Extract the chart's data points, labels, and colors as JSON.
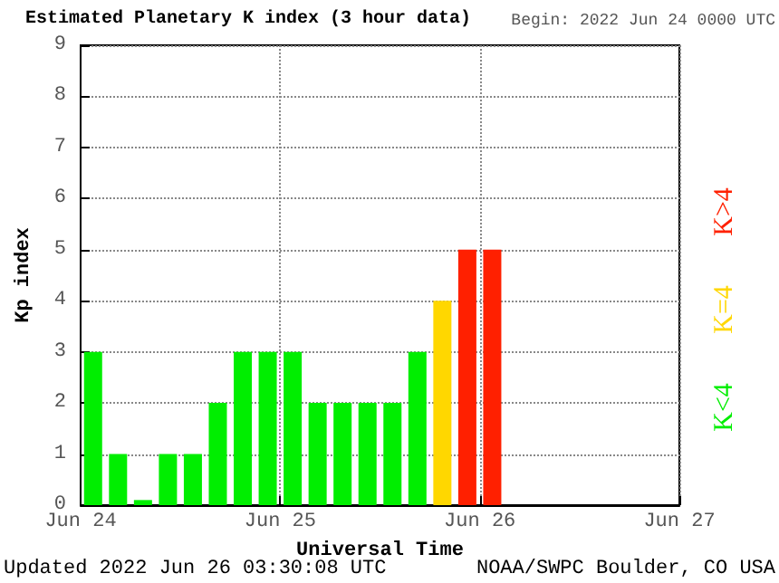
{
  "chart_data": {
    "type": "bar",
    "title": "Estimated Planetary K index (3 hour data)",
    "subtitle": "Begin: 2022 Jun 24 0000 UTC",
    "xlabel": "Universal Time",
    "ylabel": "Kp index",
    "x": [
      "2022-06-24T01:30",
      "2022-06-24T04:30",
      "2022-06-24T07:30",
      "2022-06-24T10:30",
      "2022-06-24T13:30",
      "2022-06-24T16:30",
      "2022-06-24T19:30",
      "2022-06-24T22:30",
      "2022-06-25T01:30",
      "2022-06-25T04:30",
      "2022-06-25T07:30",
      "2022-06-25T10:30",
      "2022-06-25T13:30",
      "2022-06-25T16:30",
      "2022-06-25T19:30",
      "2022-06-25T22:30",
      "2022-06-26T01:30"
    ],
    "values": [
      3,
      1,
      0.1,
      1,
      1,
      2,
      3,
      3,
      3,
      2,
      2,
      2,
      2,
      3,
      4,
      5,
      5
    ],
    "colors": [
      "#00ee00",
      "#00ee00",
      "#00ee00",
      "#00ee00",
      "#00ee00",
      "#00ee00",
      "#00ee00",
      "#00ee00",
      "#00ee00",
      "#00ee00",
      "#00ee00",
      "#00ee00",
      "#00ee00",
      "#00ee00",
      "#ffd700",
      "#ff2000",
      "#ff2000"
    ],
    "xlim": [
      "2022-06-24",
      "2022-06-27"
    ],
    "xticks": [
      {
        "value": "2022-06-24",
        "label": "Jun 24"
      },
      {
        "value": "2022-06-25",
        "label": "Jun 25"
      },
      {
        "value": "2022-06-26",
        "label": "Jun 26"
      },
      {
        "value": "2022-06-27",
        "label": "Jun 27"
      }
    ],
    "ylim": [
      0,
      9
    ],
    "yticks": [
      0,
      1,
      2,
      3,
      4,
      5,
      6,
      7,
      8,
      9
    ],
    "grid": true,
    "annotations": [
      "K<4",
      "K=4",
      "K>4",
      "Updated 2022 Jun 26 03:30:08 UTC",
      "NOAA/SWPC Boulder, CO USA"
    ]
  }
}
